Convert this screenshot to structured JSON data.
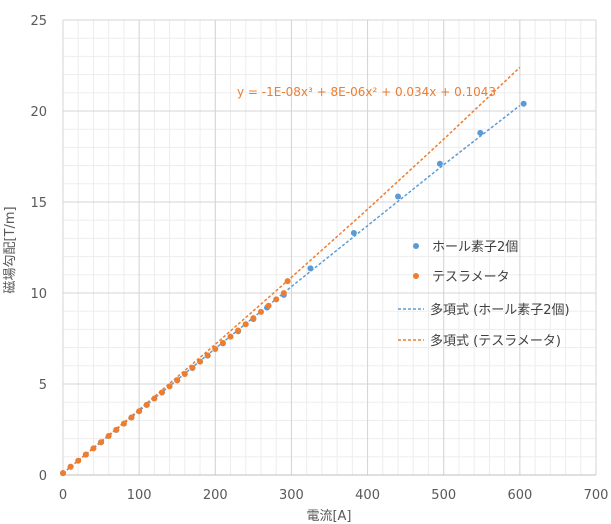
{
  "chart_data": {
    "type": "scatter",
    "xlabel": "電流[A]",
    "ylabel": "磁場勾配[T/m]",
    "xlim": [
      0,
      700
    ],
    "ylim": [
      0,
      25
    ],
    "x_ticks": [
      "0",
      "100",
      "200",
      "300",
      "400",
      "500",
      "600",
      "700"
    ],
    "y_ticks": [
      "0",
      "5",
      "10",
      "15",
      "20",
      "25"
    ],
    "grid": "major and minor",
    "legend_position": "right",
    "series": [
      {
        "name": "ホール素子2個",
        "kind": "points",
        "color": "#5B9BD5",
        "x": [
          0,
          10,
          30,
          50,
          70,
          90,
          110,
          130,
          150,
          170,
          190,
          210,
          230,
          250,
          268,
          290,
          325,
          382,
          440,
          495,
          548,
          605
        ],
        "y": [
          0.1,
          0.45,
          1.12,
          1.8,
          2.48,
          3.16,
          3.85,
          4.53,
          5.2,
          5.88,
          6.56,
          7.23,
          7.9,
          8.57,
          9.2,
          9.9,
          11.35,
          13.3,
          15.3,
          17.1,
          18.8,
          20.4
        ]
      },
      {
        "name": "テスラメータ",
        "kind": "points",
        "color": "#ED7D31",
        "x": [
          0,
          10,
          20,
          30,
          40,
          50,
          60,
          70,
          80,
          90,
          100,
          110,
          120,
          130,
          140,
          150,
          160,
          170,
          180,
          190,
          200,
          210,
          220,
          230,
          240,
          250,
          260,
          270,
          280,
          290,
          295
        ],
        "y": [
          0.1,
          0.45,
          0.78,
          1.12,
          1.46,
          1.8,
          2.14,
          2.48,
          2.82,
          3.16,
          3.5,
          3.85,
          4.2,
          4.53,
          4.87,
          5.21,
          5.55,
          5.89,
          6.23,
          6.57,
          6.92,
          7.26,
          7.6,
          7.94,
          8.28,
          8.62,
          8.96,
          9.3,
          9.65,
          9.99,
          10.65
        ]
      },
      {
        "name": "多項式 (ホール素子2個)",
        "kind": "trendline",
        "color": "#5B9BD5",
        "x": [
          0,
          100,
          200,
          300,
          400,
          500,
          600
        ],
        "y": [
          0.1,
          3.52,
          6.95,
          10.35,
          13.7,
          17.05,
          20.3
        ]
      },
      {
        "name": "多項式 (テスラメータ)",
        "kind": "trendline",
        "color": "#ED7D31",
        "x": [
          0,
          100,
          200,
          300,
          400,
          500,
          600
        ],
        "y": [
          0.1,
          3.59,
          7.18,
          10.86,
          14.6,
          18.45,
          22.4
        ]
      }
    ],
    "annotations": [
      {
        "text": "y = -1E-08x³ + 8E-06x² + 0.034x + 0.1043",
        "color": "#ED7D31"
      }
    ]
  }
}
